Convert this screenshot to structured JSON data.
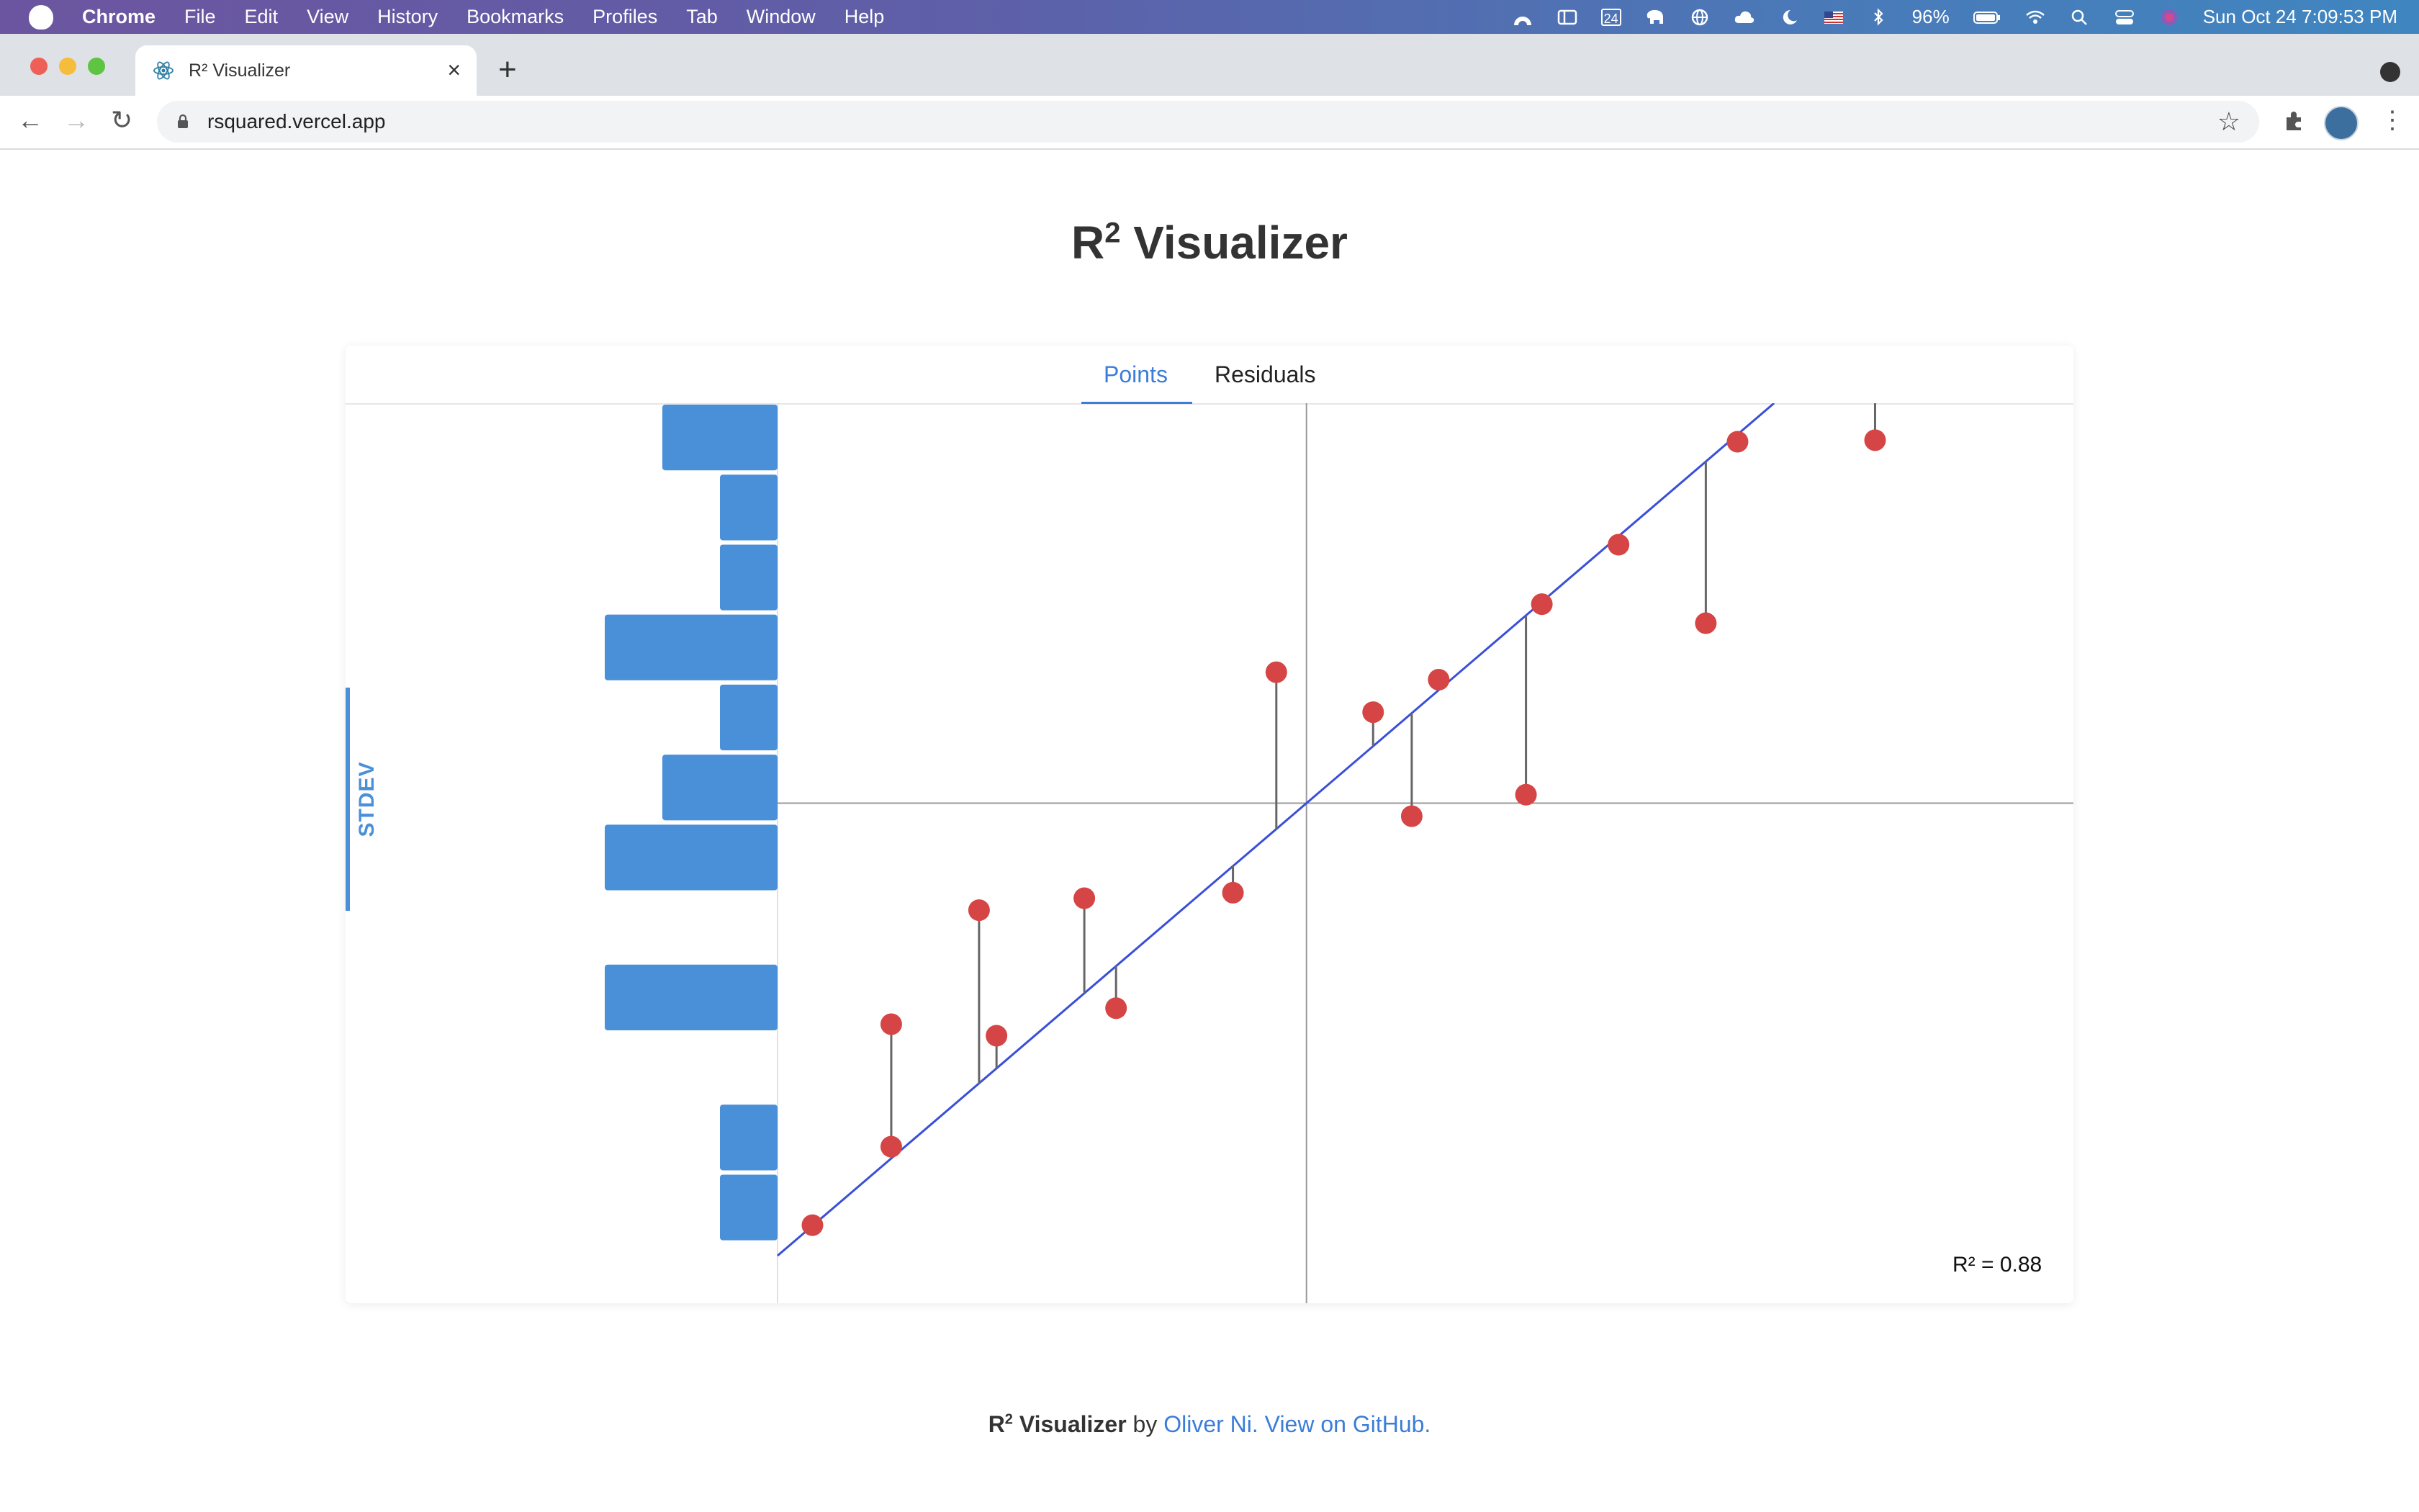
{
  "menubar": {
    "app_name": "Chrome",
    "items": [
      "File",
      "Edit",
      "View",
      "History",
      "Bookmarks",
      "Profiles",
      "Tab",
      "Window",
      "Help"
    ],
    "battery": "96%",
    "datetime": "Sun Oct 24  7:09:53 PM",
    "calendar_day": "24"
  },
  "browser": {
    "tab_title": "R² Visualizer",
    "url": "rsquared.vercel.app"
  },
  "page": {
    "title_main": "R",
    "title_sup": "2",
    "title_rest": " Visualizer",
    "tabs": [
      {
        "label": "Points",
        "active": true
      },
      {
        "label": "Residuals",
        "active": false
      }
    ],
    "stdev_label": "STDEV",
    "r2_label": "R² = 0.88",
    "footer": {
      "name_main": "R",
      "name_sup": "2",
      "name_rest": " Visualizer",
      "by": " by ",
      "author": "Oliver Ni.",
      "github": " View on GitHub."
    }
  },
  "colors": {
    "accent": "#3b7dd8",
    "bar": "#4a90d9",
    "point": "#d64545",
    "fit_line": "#3a4fd8"
  },
  "chart_data": {
    "type": "scatter",
    "r_squared": 0.88,
    "xlim": [
      -10,
      14.5
    ],
    "ylim": [
      -10,
      8
    ],
    "fit_line": {
      "slope": 0.905,
      "intercept": 0.0
    },
    "points": [
      {
        "x": -9.34,
        "y": -8.44
      },
      {
        "x": -7.85,
        "y": -6.87
      },
      {
        "x": -7.85,
        "y": -4.42
      },
      {
        "x": -6.19,
        "y": -2.14
      },
      {
        "x": -5.86,
        "y": -4.65
      },
      {
        "x": -4.2,
        "y": -1.9
      },
      {
        "x": -3.6,
        "y": -4.1
      },
      {
        "x": -1.39,
        "y": -1.79
      },
      {
        "x": -0.57,
        "y": 2.62
      },
      {
        "x": 1.26,
        "y": 1.82
      },
      {
        "x": 1.99,
        "y": -0.26
      },
      {
        "x": 2.5,
        "y": 2.47
      },
      {
        "x": 4.15,
        "y": 0.17
      },
      {
        "x": 4.45,
        "y": 3.98
      },
      {
        "x": 5.9,
        "y": 5.17
      },
      {
        "x": 7.55,
        "y": 3.6
      },
      {
        "x": 8.15,
        "y": 7.23
      },
      {
        "x": 10.75,
        "y": 7.26
      }
    ],
    "stdev_histogram": {
      "y_from": 8,
      "bin_size": 1.4,
      "counts": [
        2,
        1,
        1,
        3,
        1,
        2,
        3,
        0,
        3,
        0,
        1,
        1
      ]
    }
  }
}
